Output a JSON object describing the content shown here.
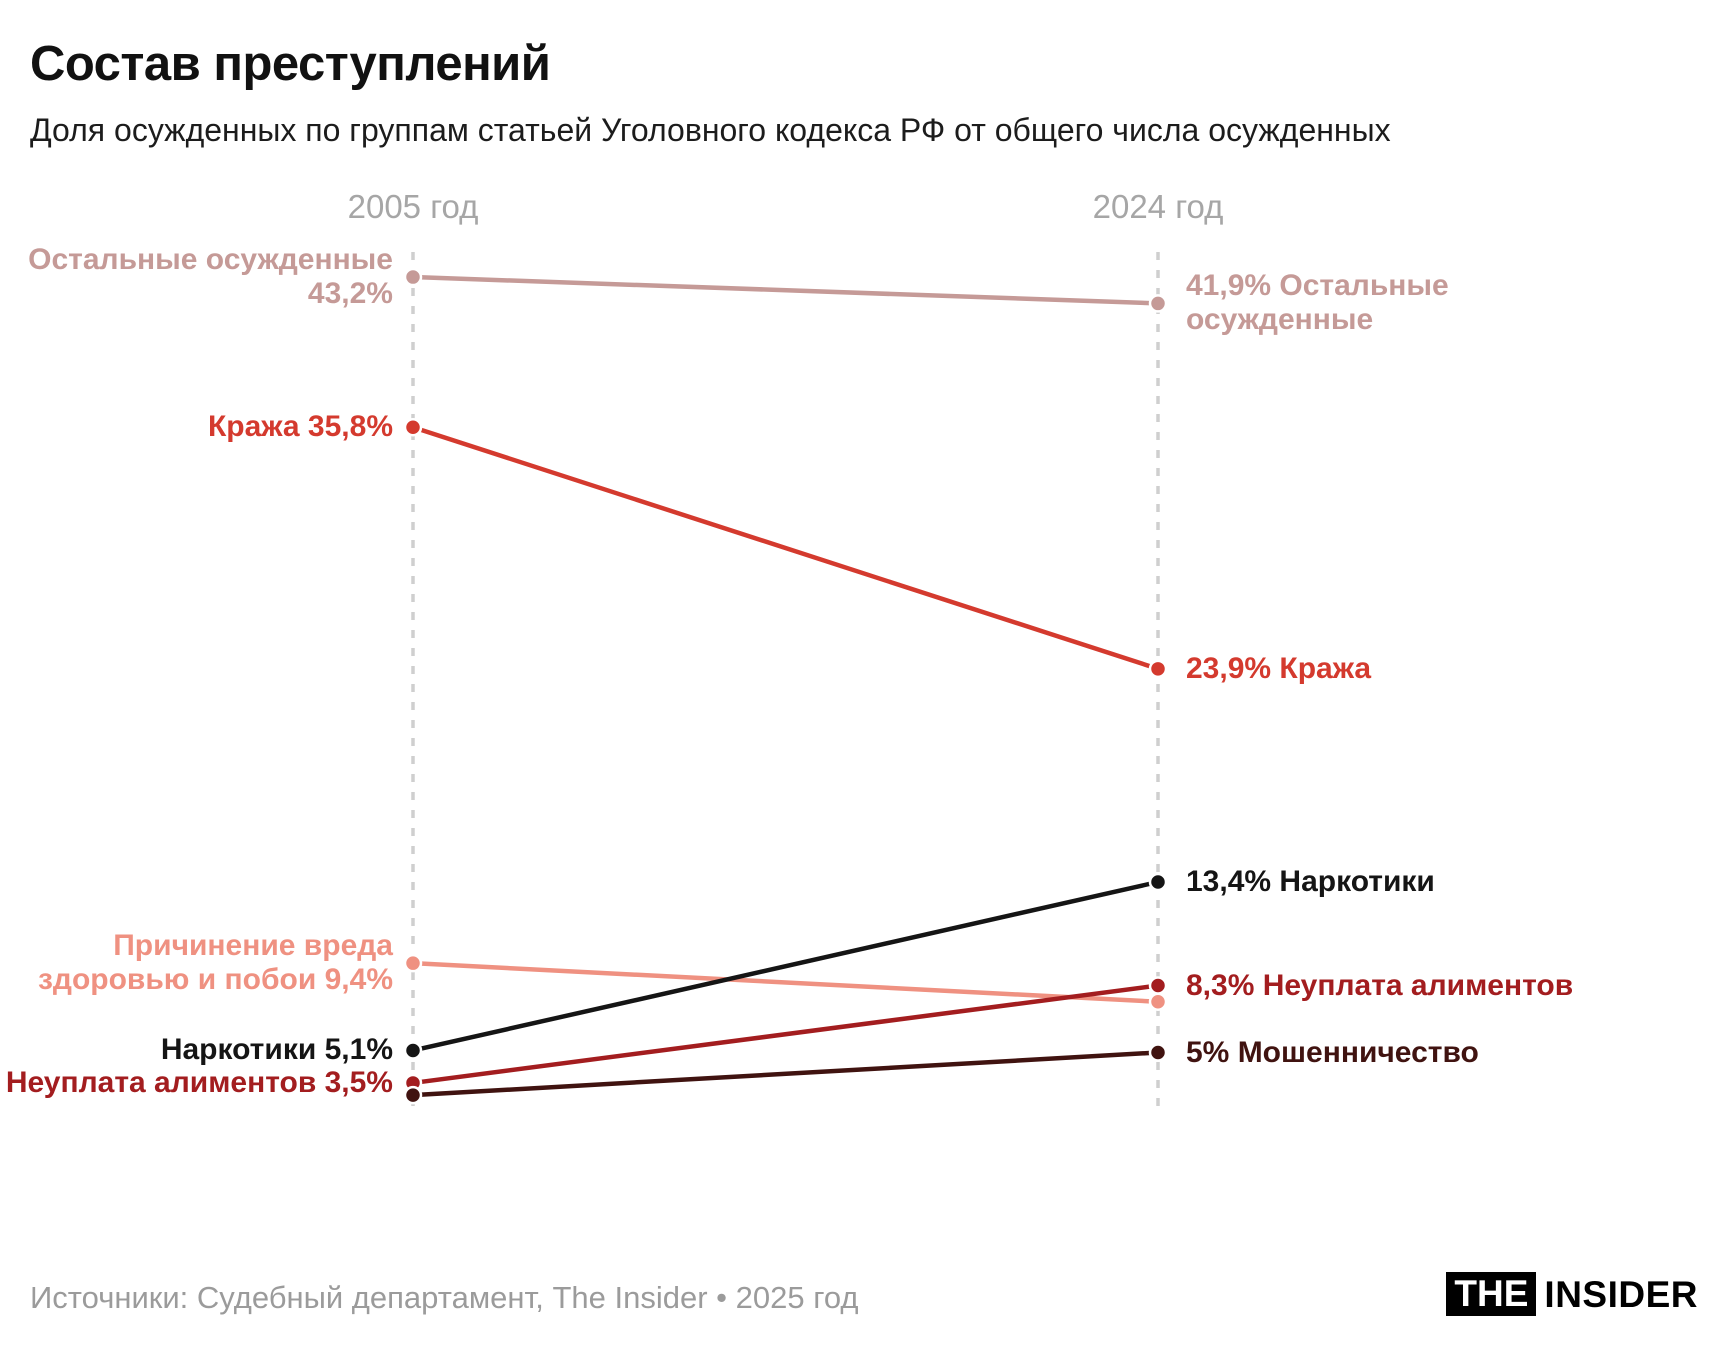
{
  "title": "Состав преступлений",
  "subtitle": "Доля осужденных по группам статьей Уголовного кодекса РФ от общего числа осужденных",
  "columns": {
    "left": "2005 год",
    "right": "2024 год"
  },
  "footer": {
    "sources": "Источники: Судебный департамент, The Insider • 2025 год",
    "logo_the": "THE",
    "logo_insider": "INSIDER"
  },
  "chart_data": {
    "type": "line",
    "subtype": "slopegraph",
    "x": [
      "2005 год",
      "2024 год"
    ],
    "value_unit": "%",
    "grid": "off",
    "series": [
      {
        "name": "Остальные осужденные",
        "values": [
          43.2,
          41.9
        ],
        "color": "#c59a97",
        "label_left_lines": [
          "Остальные осужденные",
          "43,2%"
        ],
        "label_right_lines": [
          "41,9% Остальные",
          "осужденные"
        ]
      },
      {
        "name": "Кража",
        "values": [
          35.8,
          23.9
        ],
        "color": "#d43a2e",
        "label_left_lines": [
          "Кража 35,8%"
        ],
        "label_right_lines": [
          "23,9% Кража"
        ]
      },
      {
        "name": "Причинение вреда здоровью и побои",
        "values": [
          9.4,
          7.5
        ],
        "color": "#ef9181",
        "label_left_lines": [
          "Причинение вреда",
          "здоровью и побои 9,4%"
        ],
        "label_right_lines": []
      },
      {
        "name": "Наркотики",
        "values": [
          5.1,
          13.4
        ],
        "color": "#151515",
        "label_left_lines": [
          "Наркотики 5,1%"
        ],
        "label_right_lines": [
          "13,4% Наркотики"
        ]
      },
      {
        "name": "Неуплата алиментов",
        "values": [
          3.5,
          8.3
        ],
        "color": "#a31d1f",
        "label_left_lines": [
          "Неуплата алиментов 3,5%"
        ],
        "label_right_lines": [
          "8,3% Неуплата алиментов"
        ]
      },
      {
        "name": "Мошенничество",
        "values": [
          2.9,
          5.0
        ],
        "color": "#401310",
        "label_left_lines": [],
        "label_right_lines": [
          "5% Мошенничество"
        ]
      }
    ]
  }
}
